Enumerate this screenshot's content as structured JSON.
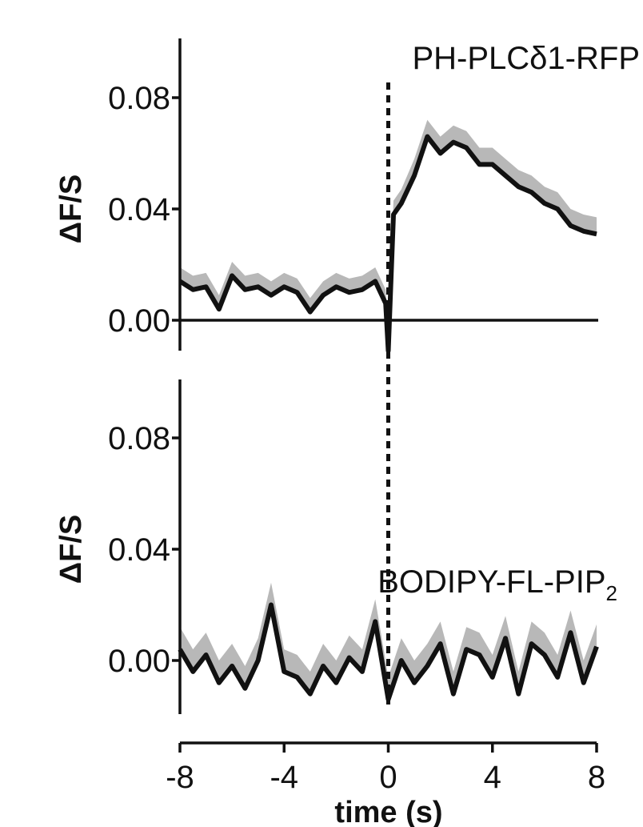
{
  "chart_data": [
    {
      "type": "line",
      "title": "PH-PLCδ1-RFP",
      "ylabel": "ΔF/S",
      "ylim": [
        -0.011,
        0.1
      ],
      "yticks": [
        0.0,
        0.04,
        0.08
      ],
      "ytick_labels": [
        "0.00",
        "0.04",
        "0.08"
      ],
      "xlim": [
        -8,
        8
      ],
      "xticks": [
        -8,
        -4,
        0,
        4,
        8
      ],
      "zero_line": true,
      "stimulus_time": 0,
      "series_color": "#111111",
      "error_band_color": "#b8b8b8",
      "x": [
        -8,
        -7.5,
        -7,
        -6.5,
        -6,
        -5.5,
        -5,
        -4.5,
        -4,
        -3.5,
        -3,
        -2.5,
        -2,
        -1.5,
        -1,
        -0.5,
        -0.1,
        0,
        0.2,
        0.5,
        1,
        1.5,
        2,
        2.5,
        3,
        3.5,
        4,
        4.5,
        5,
        5.5,
        6,
        6.5,
        7,
        7.5,
        8
      ],
      "y": [
        0.014,
        0.011,
        0.012,
        0.004,
        0.016,
        0.011,
        0.012,
        0.009,
        0.012,
        0.01,
        0.003,
        0.009,
        0.012,
        0.01,
        0.011,
        0.014,
        0.006,
        -0.011,
        0.038,
        0.042,
        0.052,
        0.066,
        0.06,
        0.064,
        0.062,
        0.056,
        0.056,
        0.052,
        0.048,
        0.046,
        0.042,
        0.04,
        0.034,
        0.032,
        0.031
      ],
      "error_upper": [
        0.019,
        0.016,
        0.017,
        0.009,
        0.021,
        0.016,
        0.017,
        0.014,
        0.017,
        0.015,
        0.008,
        0.014,
        0.017,
        0.015,
        0.016,
        0.019,
        0.011,
        -0.004,
        0.043,
        0.047,
        0.058,
        0.072,
        0.066,
        0.07,
        0.068,
        0.062,
        0.062,
        0.058,
        0.054,
        0.052,
        0.048,
        0.046,
        0.04,
        0.038,
        0.037
      ]
    },
    {
      "type": "line",
      "title": "BODIPY-FL-PIP",
      "title_subscript": "2",
      "ylabel": "ΔF/S",
      "ylim": [
        -0.02,
        0.1
      ],
      "yticks": [
        0.0,
        0.04,
        0.08
      ],
      "ytick_labels": [
        "0.00",
        "0.04",
        "0.08"
      ],
      "xlim": [
        -8,
        8
      ],
      "xticks": [
        -8,
        -4,
        0,
        4,
        8
      ],
      "xtick_labels": [
        "-8",
        "-4",
        "0",
        "4",
        "8"
      ],
      "xlabel": "time (s)",
      "zero_line": false,
      "stimulus_time": 0,
      "series_color": "#111111",
      "error_band_color": "#b8b8b8",
      "x": [
        -8,
        -7.5,
        -7,
        -6.5,
        -6,
        -5.5,
        -5,
        -4.5,
        -4,
        -3.5,
        -3,
        -2.5,
        -2,
        -1.5,
        -1,
        -0.5,
        0,
        0.5,
        1,
        1.5,
        2,
        2.5,
        3,
        3.5,
        4,
        4.5,
        5,
        5.5,
        6,
        6.5,
        7,
        7.5,
        8
      ],
      "y": [
        0.004,
        -0.004,
        0.002,
        -0.008,
        -0.002,
        -0.01,
        0.0,
        0.02,
        -0.004,
        -0.006,
        -0.012,
        -0.002,
        -0.008,
        0.001,
        -0.004,
        0.014,
        -0.014,
        0.0,
        -0.008,
        -0.002,
        0.006,
        -0.012,
        0.004,
        0.002,
        -0.006,
        0.008,
        -0.012,
        0.006,
        0.002,
        -0.006,
        0.01,
        -0.008,
        0.005
      ],
      "error_upper": [
        0.012,
        0.004,
        0.01,
        0.0,
        0.006,
        -0.002,
        0.008,
        0.028,
        0.004,
        0.002,
        -0.004,
        0.006,
        0.0,
        0.009,
        0.004,
        0.022,
        -0.006,
        0.008,
        0.0,
        0.006,
        0.014,
        -0.004,
        0.012,
        0.01,
        0.002,
        0.016,
        -0.004,
        0.014,
        0.01,
        0.002,
        0.018,
        0.0,
        0.013
      ]
    }
  ]
}
